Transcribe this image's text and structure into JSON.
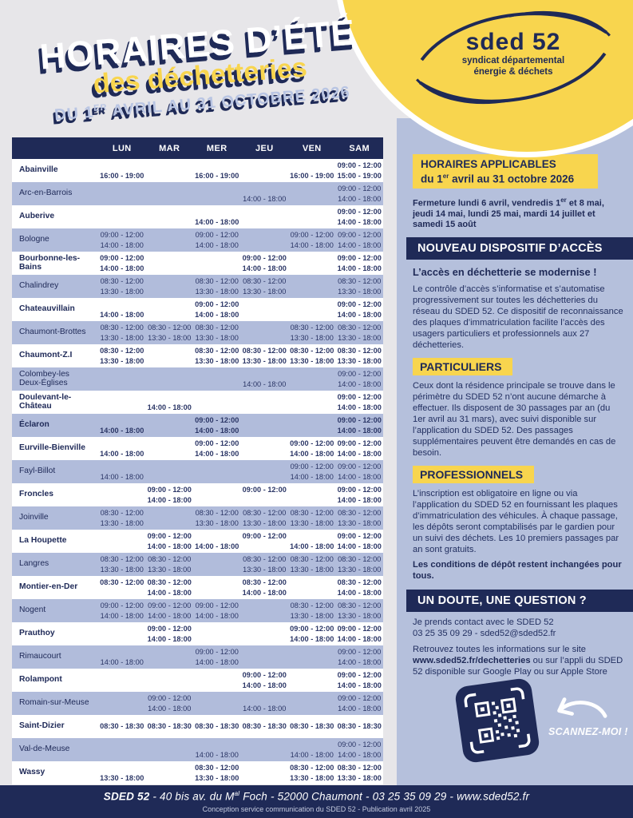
{
  "colors": {
    "navy": "#1f2a57",
    "yellow": "#f8d54e",
    "periwinkle": "#b1bcdb",
    "page_bg": "#e7e6e9"
  },
  "title": {
    "line1": "HORAIRES D’ÉTÉ",
    "line2": "des déchetteries",
    "line3_pre": "DU 1",
    "line3_sup": "ER",
    "line3_post": " AVRIL AU 31 OCTOBRE 2026"
  },
  "logo": {
    "name": "sded 52",
    "sub1": "syndicat départemental",
    "sub2": "énergie & déchets"
  },
  "table": {
    "days": [
      "LUN",
      "MAR",
      "MER",
      "JEU",
      "VEN",
      "SAM"
    ],
    "rows": [
      {
        "name": "Abainville",
        "bold": true,
        "cells": [
          [
            "",
            "16:00 - 19:00"
          ],
          null,
          [
            "",
            "16:00 - 19:00"
          ],
          null,
          [
            "",
            "16:00 - 19:00"
          ],
          [
            "09:00 - 12:00",
            "15:00 - 19:00"
          ]
        ]
      },
      {
        "name": "Arc-en-Barrois",
        "bold": false,
        "cells": [
          null,
          null,
          null,
          [
            "",
            "14:00 - 18:00"
          ],
          null,
          [
            "09:00 - 12:00",
            "14:00 - 18:00"
          ]
        ]
      },
      {
        "name": "Auberive",
        "bold": true,
        "cells": [
          null,
          null,
          [
            "",
            "14:00 - 18:00"
          ],
          null,
          null,
          [
            "09:00 - 12:00",
            "14:00 - 18:00"
          ]
        ]
      },
      {
        "name": "Bologne",
        "bold": false,
        "cells": [
          [
            "09:00 - 12:00",
            "14:00 - 18:00"
          ],
          null,
          [
            "09:00 - 12:00",
            "14:00 - 18:00"
          ],
          null,
          [
            "09:00 - 12:00",
            "14:00 - 18:00"
          ],
          [
            "09:00 - 12:00",
            "14:00 - 18:00"
          ]
        ]
      },
      {
        "name": "Bourbonne-les-Bains",
        "bold": true,
        "cells": [
          [
            "09:00 - 12:00",
            "14:00 - 18:00"
          ],
          null,
          null,
          [
            "09:00 - 12:00",
            "14:00 - 18:00"
          ],
          null,
          [
            "09:00 - 12:00",
            "14:00 - 18:00"
          ]
        ]
      },
      {
        "name": "Chalindrey",
        "bold": false,
        "cells": [
          [
            "08:30 - 12:00",
            "13:30 - 18:00"
          ],
          null,
          [
            "08:30 - 12:00",
            "13:30 - 18:00"
          ],
          [
            "08:30 - 12:00",
            "13:30 - 18:00"
          ],
          null,
          [
            "08:30 - 12:00",
            "13:30 - 18:00"
          ]
        ]
      },
      {
        "name": "Chateauvillain",
        "bold": true,
        "cells": [
          [
            "",
            "14:00 - 18:00"
          ],
          null,
          [
            "09:00 - 12:00",
            "14:00 - 18:00"
          ],
          null,
          null,
          [
            "09:00 - 12:00",
            "14:00 - 18:00"
          ]
        ]
      },
      {
        "name": "Chaumont-Brottes",
        "bold": false,
        "cells": [
          [
            "08:30 - 12:00",
            "13:30 - 18:00"
          ],
          [
            "08:30 - 12:00",
            "13:30 - 18:00"
          ],
          [
            "08:30 - 12:00",
            "13:30 - 18:00"
          ],
          null,
          [
            "08:30 - 12:00",
            "13:30 - 18:00"
          ],
          [
            "08:30 - 12:00",
            "13:30 - 18:00"
          ]
        ]
      },
      {
        "name": "Chaumont-Z.I",
        "bold": true,
        "cells": [
          [
            "08:30 - 12:00",
            "13:30 - 18:00"
          ],
          null,
          [
            "08:30 - 12:00",
            "13:30 - 18:00"
          ],
          [
            "08:30 - 12:00",
            "13:30 - 18:00"
          ],
          [
            "08:30 - 12:00",
            "13:30 - 18:00"
          ],
          [
            "08:30 - 12:00",
            "13:30 - 18:00"
          ]
        ]
      },
      {
        "name": "Colombey-les\nDeux-Églises",
        "bold": false,
        "cells": [
          null,
          null,
          null,
          [
            "",
            "14:00 - 18:00"
          ],
          null,
          [
            "09:00 - 12:00",
            "14:00 - 18:00"
          ]
        ]
      },
      {
        "name": "Doulevant-le-Château",
        "bold": true,
        "cells": [
          null,
          [
            "",
            "14:00 - 18:00"
          ],
          null,
          null,
          null,
          [
            "09:00 - 12:00",
            "14:00 - 18:00"
          ]
        ]
      },
      {
        "name": "Éclaron",
        "bold": true,
        "cells": [
          [
            "",
            "14:00 - 18:00"
          ],
          null,
          [
            "09:00 - 12:00",
            "14:00 - 18:00"
          ],
          null,
          null,
          [
            "09:00 - 12:00",
            "14:00 - 18:00"
          ]
        ]
      },
      {
        "name": "Eurville-Bienville",
        "bold": true,
        "cells": [
          [
            "",
            "14:00 - 18:00"
          ],
          null,
          [
            "09:00 - 12:00",
            "14:00 - 18:00"
          ],
          null,
          [
            "09:00 - 12:00",
            "14:00 - 18:00"
          ],
          [
            "09:00 - 12:00",
            "14:00 - 18:00"
          ]
        ]
      },
      {
        "name": "Fayl-Billot",
        "bold": false,
        "cells": [
          [
            "",
            "14:00 - 18:00"
          ],
          null,
          null,
          null,
          [
            "09:00 - 12:00",
            "14:00 - 18:00"
          ],
          [
            "09:00 - 12:00",
            "14:00 - 18:00"
          ]
        ]
      },
      {
        "name": "Froncles",
        "bold": true,
        "cells": [
          null,
          [
            "09:00 - 12:00",
            "14:00 - 18:00"
          ],
          null,
          [
            "09:00 - 12:00",
            ""
          ],
          null,
          [
            "09:00 - 12:00",
            "14:00 - 18:00"
          ]
        ]
      },
      {
        "name": "Joinville",
        "bold": false,
        "cells": [
          [
            "08:30 - 12:00",
            "13:30 - 18:00"
          ],
          null,
          [
            "08:30 - 12:00",
            "13:30 - 18:00"
          ],
          [
            "08:30 - 12:00",
            "13:30 - 18:00"
          ],
          [
            "08:30 - 12:00",
            "13:30 - 18:00"
          ],
          [
            "08:30 - 12:00",
            "13:30 - 18:00"
          ]
        ]
      },
      {
        "name": "La Houpette",
        "bold": true,
        "cells": [
          null,
          [
            "09:00 - 12:00",
            "14:00 - 18:00"
          ],
          [
            "",
            "14:00 - 18:00"
          ],
          [
            "09:00 - 12:00",
            ""
          ],
          [
            "",
            "14:00 - 18:00"
          ],
          [
            "09:00 - 12:00",
            "14:00 - 18:00"
          ]
        ]
      },
      {
        "name": "Langres",
        "bold": false,
        "cells": [
          [
            "08:30 - 12:00",
            "13:30 - 18:00"
          ],
          [
            "08:30 - 12:00",
            "13:30 - 18:00"
          ],
          null,
          [
            "08:30 - 12:00",
            "13:30 - 18:00"
          ],
          [
            "08:30 - 12:00",
            "13:30 - 18:00"
          ],
          [
            "08:30 - 12:00",
            "13:30 - 18:00"
          ]
        ]
      },
      {
        "name": "Montier-en-Der",
        "bold": true,
        "cells": [
          [
            "08:30 - 12:00",
            ""
          ],
          [
            "08:30 - 12:00",
            "14:00 - 18:00"
          ],
          null,
          [
            "08:30 - 12:00",
            "14:00 - 18:00"
          ],
          null,
          [
            "08:30 - 12:00",
            "14:00 - 18:00"
          ]
        ]
      },
      {
        "name": "Nogent",
        "bold": false,
        "cells": [
          [
            "09:00 - 12:00",
            "14:00 - 18:00"
          ],
          [
            "09:00 - 12:00",
            "14:00 - 18:00"
          ],
          [
            "09:00 - 12:00",
            "14:00 - 18:00"
          ],
          null,
          [
            "08:30 - 12:00",
            "13:30 - 18:00"
          ],
          [
            "08:30 - 12:00",
            "13:30 - 18:00"
          ]
        ]
      },
      {
        "name": "Prauthoy",
        "bold": true,
        "cells": [
          null,
          [
            "09:00 - 12:00",
            "14:00 - 18:00"
          ],
          null,
          null,
          [
            "09:00 - 12:00",
            "14:00 - 18:00"
          ],
          [
            "09:00 - 12:00",
            "14:00 - 18:00"
          ]
        ]
      },
      {
        "name": "Rimaucourt",
        "bold": false,
        "cells": [
          [
            "",
            "14:00 - 18:00"
          ],
          null,
          [
            "09:00 - 12:00",
            "14:00 - 18:00"
          ],
          null,
          null,
          [
            "09:00 - 12:00",
            "14:00 - 18:00"
          ]
        ]
      },
      {
        "name": "Rolampont",
        "bold": true,
        "cells": [
          null,
          null,
          null,
          [
            "09:00 - 12:00",
            "14:00 - 18:00"
          ],
          null,
          [
            "09:00 - 12:00",
            "14:00 - 18:00"
          ]
        ]
      },
      {
        "name": "Romain-sur-Meuse",
        "bold": false,
        "cells": [
          null,
          [
            "09:00 - 12:00",
            "14:00 - 18:00"
          ],
          null,
          [
            "",
            "14:00 - 18:00"
          ],
          null,
          [
            "09:00 - 12:00",
            "14:00 - 18:00"
          ]
        ]
      },
      {
        "name": "Saint-Dizier",
        "bold": true,
        "cells": [
          [
            "08:30 - 18:30"
          ],
          [
            "08:30 - 18:30"
          ],
          [
            "08:30 - 18:30"
          ],
          [
            "08:30 - 18:30"
          ],
          [
            "08:30 - 18:30"
          ],
          [
            "08:30 - 18:30"
          ]
        ]
      },
      {
        "name": "Val-de-Meuse",
        "bold": false,
        "cells": [
          null,
          null,
          [
            "",
            "14:00 - 18:00"
          ],
          null,
          [
            "",
            "14:00 - 18:00"
          ],
          [
            "09:00 - 12:00",
            "14:00 - 18:00"
          ]
        ]
      },
      {
        "name": "Wassy",
        "bold": true,
        "cells": [
          [
            "",
            "13:30 - 18:00"
          ],
          null,
          [
            "08:30 - 12:00",
            "13:30 - 18:00"
          ],
          null,
          [
            "08:30 - 12:00",
            "13:30 - 18:00"
          ],
          [
            "08:30 - 12:00",
            "13:30 - 18:00"
          ]
        ]
      }
    ]
  },
  "panel": {
    "applicables": {
      "line1": "HORAIRES APPLICABLES",
      "line2_pre": "du 1",
      "line2_sup": "er",
      "line2_post": " avril au 31 octobre  2026"
    },
    "closures_pre": "Fermeture lundi 6 avril, vendredis 1",
    "closures_sup": "er",
    "closures_post": " et 8 mai, jeudi 14 mai, lundi 25 mai, mardi 14 juillet et samedi 15 août",
    "section1_title": "NOUVEAU DISPOSITIF D’ACCÈS",
    "lead": "L’accès en déchetterie se modernise !",
    "para1": "Le contrôle d’accès s’informatise et s’automatise progressivement sur toutes les déchetteries du réseau du SDED 52. Ce dispositif de reconnaissance des plaques d’immatriculation facilite l’accès des usagers particuliers et professionnels aux 27 déchetteries.",
    "label_particuliers": "PARTICULIERS",
    "para2": "Ceux dont la résidence principale se trouve dans le périmètre du SDED 52 n’ont aucune démarche à effectuer. Ils disposent de 30 passages par an (du 1er avril au 31 mars), avec suivi disponible sur l’application du SDED 52. Des passages supplémentaires peuvent être demandés en cas de besoin.",
    "label_professionnels": "PROFESSIONNELS",
    "para3": "L’inscription est obligatoire en ligne ou via l’application du SDED 52 en fournissant les plaques d’immatriculation des véhicules. À chaque passage, les dépôts seront comptabilisés par le gardien pour un suivi des déchets. Les 10 premiers passages par an sont gratuits.",
    "para4": "Les conditions de dépôt restent inchangées pour tous.",
    "section2_title": "UN DOUTE, UNE QUESTION ?",
    "contact1": "Je prends contact avec le SDED 52",
    "contact2": "03 25 35 09 29 - sded52@sded52.fr",
    "info_pre": "Retrouvez toutes les informations sur le site ",
    "info_bold": "www.sded52.fr/dechetteries",
    "info_post": " ou sur l’appli du SDED 52  disponible sur Google Play ou sur Apple Store",
    "scan_label": "SCANNEZ-MOI !"
  },
  "footer": {
    "brand": "SDED 52",
    "addr_pre": " - 40 bis av. du M",
    "addr_sup": "al",
    "addr_post": " Foch - 52000 Chaumont - 03 25 35 09 29 - www.sded52.fr",
    "credit": "Conception service communication du SDED 52 - Publication avril 2025"
  }
}
